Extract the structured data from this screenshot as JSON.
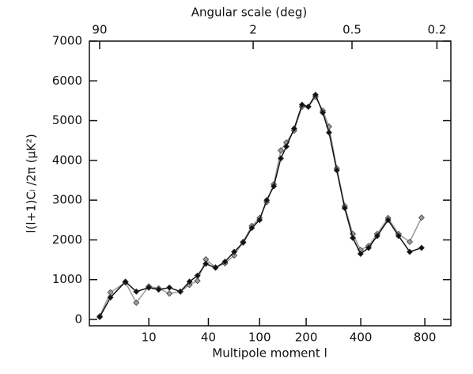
{
  "chart_data": {
    "type": "line",
    "x2label": "Angular scale (deg)",
    "xlabel": "Multipole moment l",
    "ylabel": "l(l+1)Cₗ /2π (μK²)",
    "xscale": "power",
    "xexponent": 0.23,
    "xlim": [
      1.3,
      1030
    ],
    "xticks": [
      10,
      40,
      100,
      200,
      400,
      800
    ],
    "x2lim": [
      138,
      0.175
    ],
    "x2ticks": [
      90,
      2,
      0.5,
      0.2
    ],
    "ylim": [
      -160,
      7000
    ],
    "yticks": [
      0,
      1000,
      2000,
      3000,
      4000,
      5000,
      6000,
      7000
    ],
    "marker": "diamond",
    "x": [
      2,
      3,
      5,
      7,
      10,
      13,
      17,
      22,
      27,
      32,
      38,
      46,
      55,
      65,
      76,
      88,
      100,
      112,
      125,
      139,
      151,
      169,
      189,
      206,
      227,
      250,
      271,
      299,
      330,
      364,
      399,
      438,
      483,
      545,
      610,
      686,
      774
    ],
    "series": [
      {
        "name": "black",
        "color": "#111111",
        "values": [
          60,
          550,
          950,
          700,
          800,
          750,
          800,
          700,
          950,
          1100,
          1400,
          1300,
          1450,
          1700,
          1930,
          2300,
          2500,
          3000,
          3350,
          4050,
          4350,
          4800,
          5400,
          5350,
          5650,
          5200,
          4700,
          3750,
          2800,
          2050,
          1650,
          1800,
          2100,
          2500,
          2100,
          1700,
          1800
        ]
      },
      {
        "name": "gray",
        "color": "#9a9a9a",
        "values": [
          80,
          680,
          930,
          420,
          830,
          780,
          650,
          700,
          870,
          970,
          1510,
          1310,
          1410,
          1610,
          1950,
          2350,
          2550,
          2950,
          3400,
          4250,
          4450,
          4750,
          5350,
          5350,
          5600,
          5250,
          4850,
          3800,
          2850,
          2150,
          1750,
          1850,
          2150,
          2550,
          2150,
          1950,
          2560
        ]
      }
    ]
  }
}
